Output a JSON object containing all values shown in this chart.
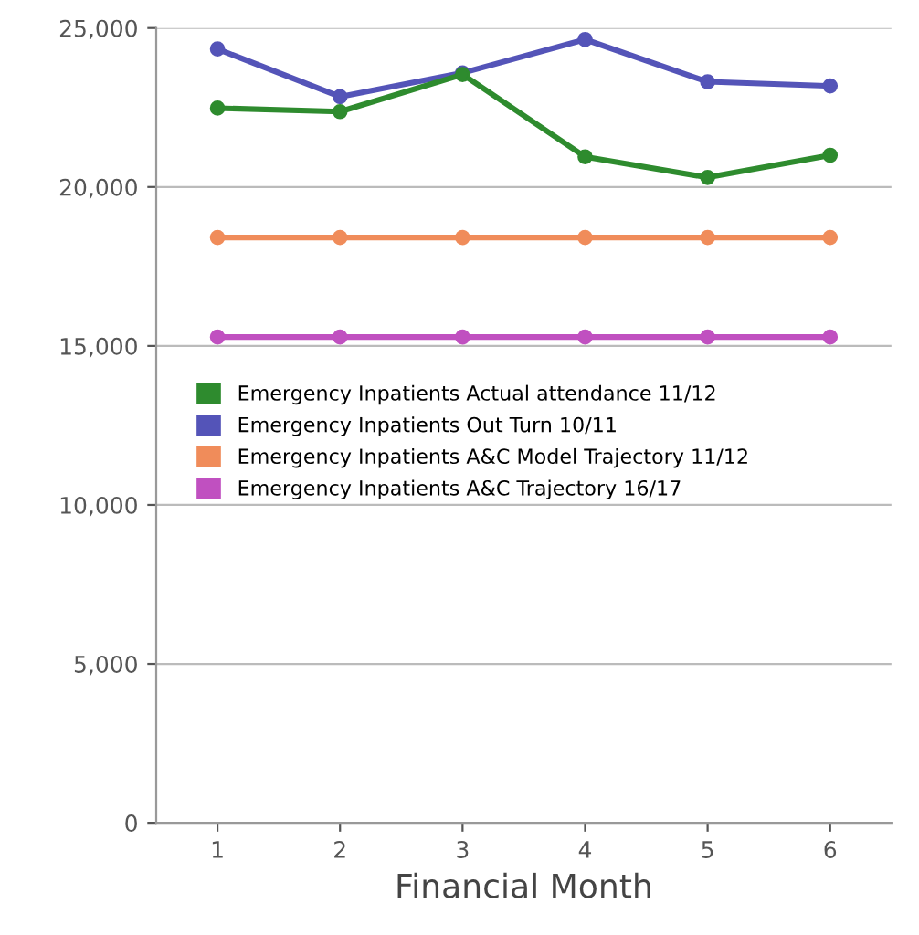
{
  "chart_data": {
    "type": "line",
    "xlabel": "Financial Month",
    "categories": [
      "1",
      "2",
      "3",
      "4",
      "5",
      "6"
    ],
    "series": [
      {
        "name": "Emergency Inpatients Actual attendance 11/12",
        "color": "#2e8b2e",
        "values": [
          22480,
          22370,
          23540,
          20950,
          20300,
          21000
        ]
      },
      {
        "name": "Emergency Inpatients Out Turn 10/11",
        "color": "#5454b8",
        "values": [
          24340,
          22840,
          23590,
          24640,
          23310,
          23180
        ]
      },
      {
        "name": "Emergency Inpatients A&C Model Trajectory 11/12",
        "color": "#f08c5a",
        "values": [
          18410,
          18410,
          18410,
          18410,
          18410,
          18410
        ]
      },
      {
        "name": "Emergency Inpatients A&C Trajectory 16/17",
        "color": "#c050c0",
        "values": [
          15280,
          15280,
          15280,
          15280,
          15280,
          15280
        ]
      }
    ],
    "ylim": [
      0,
      25000
    ],
    "yticks": [
      {
        "value": 0,
        "label": "0"
      },
      {
        "value": 5000,
        "label": "5,000"
      },
      {
        "value": 10000,
        "label": "10,000"
      },
      {
        "value": 15000,
        "label": "15,000"
      },
      {
        "value": 20000,
        "label": "20,000"
      },
      {
        "value": 25000,
        "label": "25,000"
      }
    ],
    "grid": "y",
    "legend": "center left",
    "marker": "circle",
    "line_style": "solid"
  }
}
